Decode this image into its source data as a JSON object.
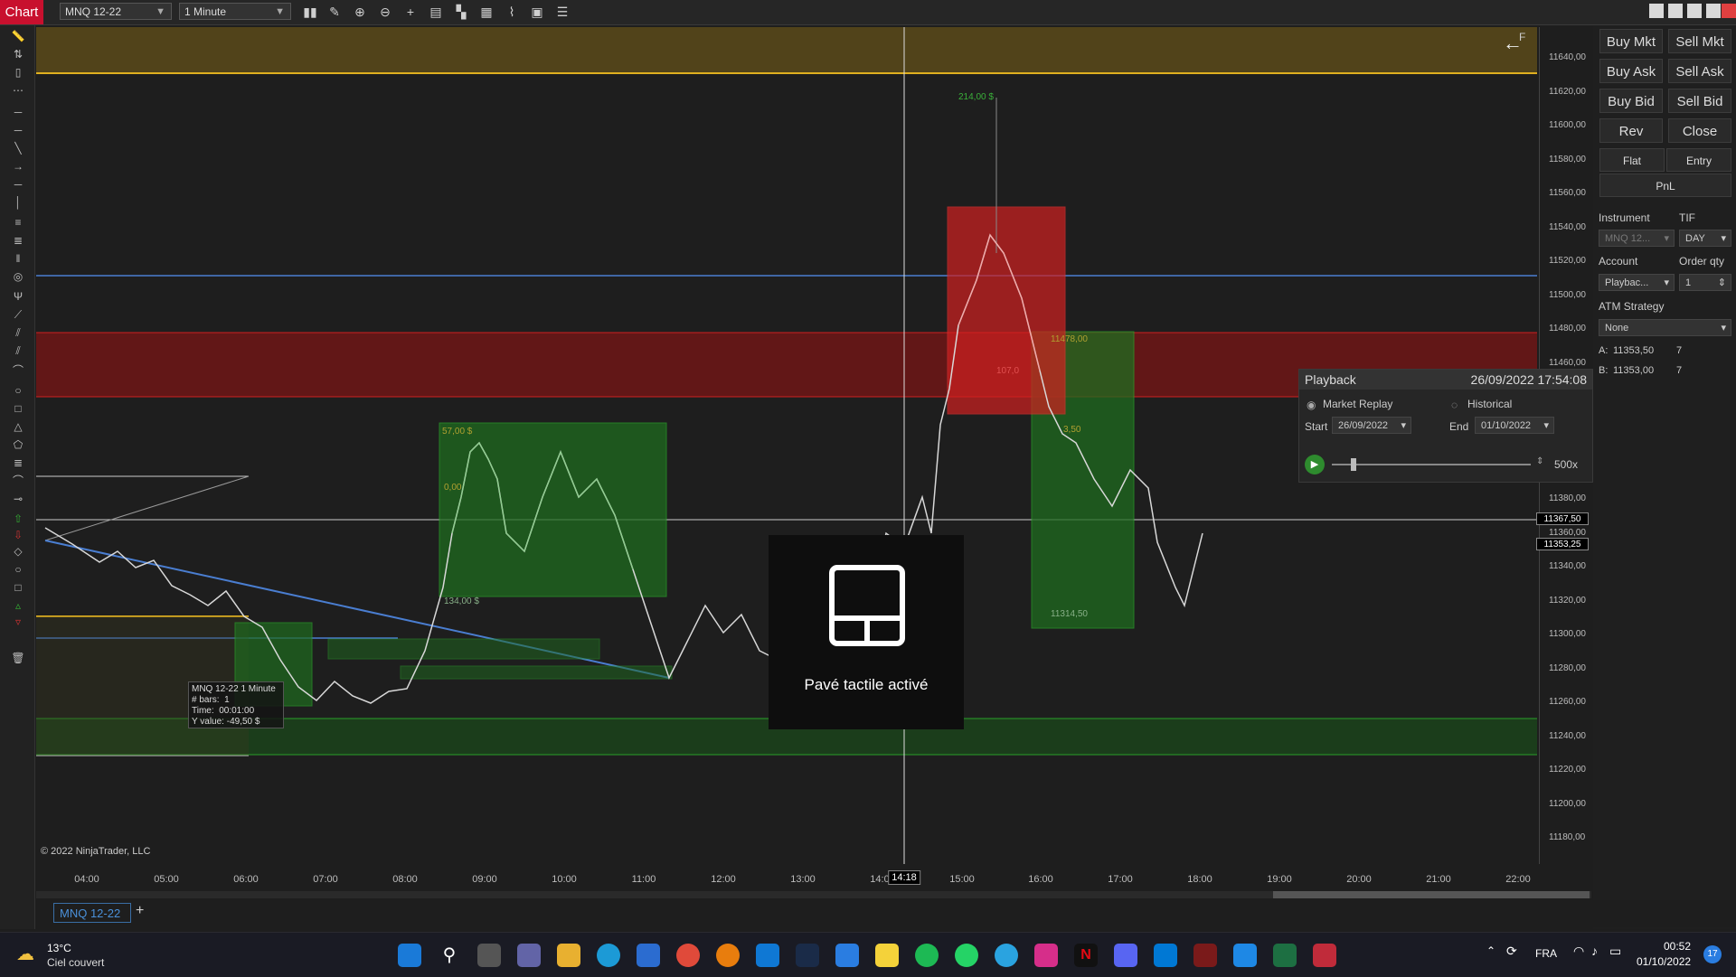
{
  "app": {
    "tab_label": "Chart"
  },
  "toolbar": {
    "instrument": "MNQ 12-22",
    "interval": "1 Minute"
  },
  "chart": {
    "f_label": "F",
    "copyright": "© 2022 NinjaTrader, LLC",
    "price_labels": [
      "11640,00",
      "11620,00",
      "11600,00",
      "11580,00",
      "11560,00",
      "11540,00",
      "11520,00",
      "11500,00",
      "11480,00",
      "11460,00",
      "11380,00",
      "11360,00",
      "11340,00",
      "11320,00",
      "11300,00",
      "11280,00",
      "11260,00",
      "11240,00",
      "11220,00",
      "11200,00",
      "11180,00"
    ],
    "price_tags": {
      "crosshair": "11367,50",
      "last": "11353,25"
    },
    "time_labels": [
      "04:00",
      "05:00",
      "06:00",
      "07:00",
      "08:00",
      "09:00",
      "10:00",
      "11:00",
      "12:00",
      "13:00",
      "14:0",
      "15:00",
      "16:00",
      "17:00",
      "18:00",
      "19:00",
      "20:00",
      "21:00",
      "22:00"
    ],
    "time_cursor": "14:18",
    "annotations": {
      "a1": "214,00 $",
      "a2": "57,00 $",
      "a3": "134,00 $",
      "a4": "11478,00",
      "a5": "11314,50",
      "a6": "3,50",
      "a7": "107,0",
      "a8": "0,00"
    },
    "data_box": {
      "line1": "MNQ 12-22 1 Minute",
      "bars_label": "# bars:",
      "bars_value": "1",
      "time_label": "Time:",
      "time_value": "00:01:00",
      "y_label": "Y value:",
      "y_value": "-49,50 $"
    }
  },
  "order_panel": {
    "buy_mkt": "Buy Mkt",
    "sell_mkt": "Sell Mkt",
    "buy_ask": "Buy Ask",
    "sell_ask": "Sell Ask",
    "buy_bid": "Buy Bid",
    "sell_bid": "Sell Bid",
    "rev": "Rev",
    "close": "Close",
    "flat": "Flat",
    "entry": "Entry",
    "pnl": "PnL",
    "instrument_label": "Instrument",
    "tif_label": "TIF",
    "instrument_value": "MNQ 12...",
    "tif_value": "DAY",
    "account_label": "Account",
    "order_qty_label": "Order qty",
    "account_value": "Playbac...",
    "order_qty_value": "1",
    "atm_label": "ATM Strategy",
    "atm_value": "None",
    "ask_label": "A:",
    "ask_price": "11353,50",
    "ask_size": "7",
    "bid_label": "B:",
    "bid_price": "11353,00",
    "bid_size": "7"
  },
  "playback": {
    "title": "Playback",
    "datetime": "26/09/2022 17:54:08",
    "market_replay": "Market Replay",
    "historical": "Historical",
    "start_label": "Start",
    "start_value": "26/09/2022",
    "end_label": "End",
    "end_value": "01/10/2022",
    "speed": "500x",
    "slider_position": 0.1
  },
  "toast": {
    "text": "Pavé tactile activé"
  },
  "tabs": {
    "active": "MNQ 12-22",
    "add": "+"
  },
  "taskbar": {
    "weather_temp": "13°C",
    "weather_desc": "Ciel couvert",
    "lang": "FRA",
    "time": "00:52",
    "date": "01/10/2022",
    "notif_count": "17"
  },
  "colors": {
    "accent": "#c8102e",
    "green_zone": "#1f6b1f",
    "red_zone": "#7a1616",
    "yellow_zone": "#5a4a1a",
    "blue_line": "#4a7ed1"
  }
}
